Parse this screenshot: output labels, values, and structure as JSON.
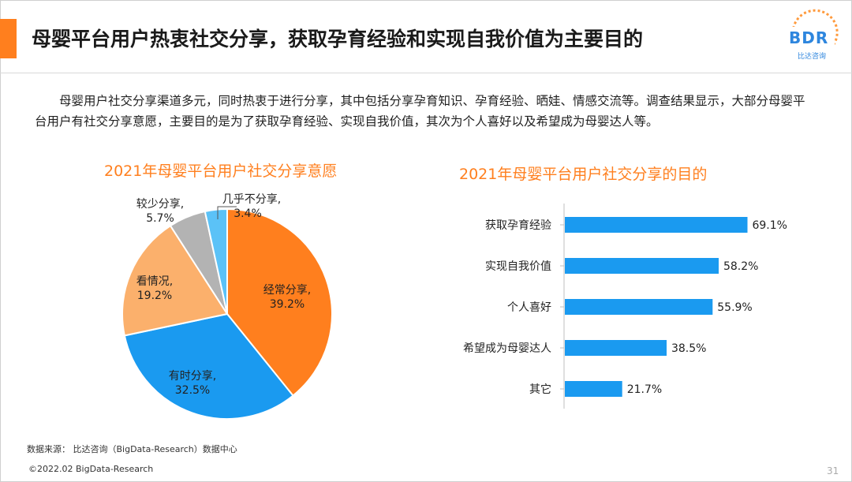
{
  "header": {
    "title": "母婴平台用户热衷社交分享，获取孕育经验和实现自我价值为主要目的",
    "logo_text": "BDR",
    "logo_sub": "比达咨询"
  },
  "body_text": "母婴用户社交分享渠道多元，同时热衷于进行分享，其中包括分享孕育知识、孕育经验、晒娃、情感交流等。调查结果显示，大部分母婴平台用户有社交分享意愿，主要目的是为了获取孕育经验、实现自我价值，其次为个人喜好以及希望成为母婴达人等。",
  "colors": {
    "accent": "#ff7f1e",
    "bar": "#1a9af0"
  },
  "chart_data": [
    {
      "type": "pie",
      "title": "2021年母婴平台用户社交分享意愿",
      "slices": [
        {
          "name": "经常分享,",
          "value": 39.2,
          "label": "39.2%",
          "color": "#ff7f1e"
        },
        {
          "name": "有时分享,",
          "value": 32.5,
          "label": "32.5%",
          "color": "#1a9af0"
        },
        {
          "name": "看情况,",
          "value": 19.2,
          "label": "19.2%",
          "color": "#fbb06c"
        },
        {
          "name": "较少分享,",
          "value": 5.7,
          "label": "5.7%",
          "color": "#b3b3b3"
        },
        {
          "name": "几乎不分享,",
          "value": 3.4,
          "label": "3.4%",
          "color": "#5bc2f7"
        }
      ]
    },
    {
      "type": "bar",
      "orientation": "horizontal",
      "title": "2021年母婴平台用户社交分享的目的",
      "categories": [
        "获取孕育经验",
        "实现自我价值",
        "个人喜好",
        "希望成为母婴达人",
        "其它"
      ],
      "values": [
        69.1,
        58.2,
        55.9,
        38.5,
        21.7
      ],
      "labels": [
        "69.1%",
        "58.2%",
        "55.9%",
        "38.5%",
        "21.7%"
      ],
      "xlim": [
        0,
        100
      ]
    }
  ],
  "source": "数据来源： 比达咨询（BigData-Research）数据中心",
  "footer": "©2022.02 BigData-Research",
  "page_number": "31"
}
